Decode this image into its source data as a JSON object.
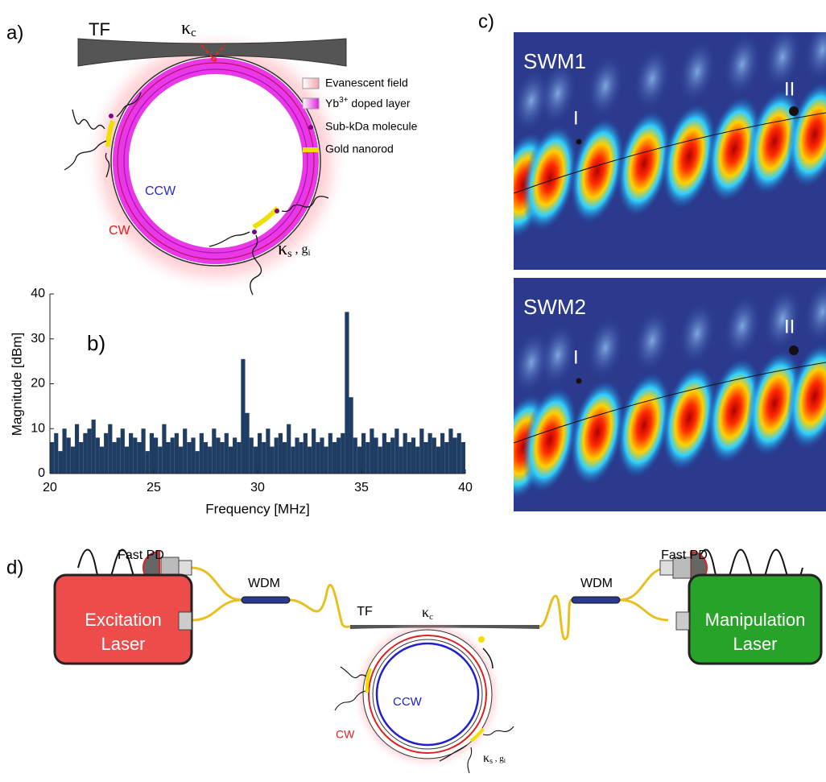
{
  "panel_a": {
    "label": "a)",
    "fiber": "TF",
    "coupling": {
      "symbol": "κ",
      "subscript": "c"
    },
    "legend": [
      "Evanescent field",
      {
        "base": "Yb",
        "sup": "3+",
        "rest": " doped layer"
      },
      "Sub-kDa molecule",
      "Gold nanorod"
    ],
    "ccw": "CCW",
    "cw": "CW",
    "scattering": {
      "symbol": "κ",
      "subscript": "s",
      "sep": " , ",
      "g": "g",
      "g_subscript": "i"
    }
  },
  "chart_data": {
    "type": "bar",
    "panel_label": "b)",
    "xlabel": "Frequency [MHz]",
    "ylabel": "Magnitude [dBm]",
    "color": "#1f3c63",
    "xlim": [
      20,
      40
    ],
    "xticks": [
      20,
      25,
      30,
      35,
      40
    ],
    "ylim": [
      0,
      40
    ],
    "yticks": [
      0,
      10,
      20,
      30,
      40
    ],
    "x": [
      20.1,
      20.3,
      20.5,
      20.7,
      20.9,
      21.1,
      21.3,
      21.5,
      21.7,
      21.9,
      22.1,
      22.3,
      22.5,
      22.7,
      22.9,
      23.1,
      23.3,
      23.5,
      23.7,
      23.9,
      24.1,
      24.3,
      24.5,
      24.7,
      24.9,
      25.1,
      25.3,
      25.5,
      25.7,
      25.9,
      26.1,
      26.3,
      26.5,
      26.7,
      26.9,
      27.1,
      27.3,
      27.5,
      27.7,
      27.9,
      28.1,
      28.3,
      28.5,
      28.7,
      28.9,
      29.1,
      29.3,
      29.5,
      29.7,
      29.9,
      30.1,
      30.3,
      30.5,
      30.7,
      30.9,
      31.1,
      31.3,
      31.5,
      31.7,
      31.9,
      32.1,
      32.3,
      32.5,
      32.7,
      32.9,
      33.1,
      33.3,
      33.5,
      33.7,
      33.9,
      34.1,
      34.3,
      34.5,
      34.7,
      34.9,
      35.1,
      35.3,
      35.5,
      35.7,
      35.9,
      36.1,
      36.3,
      36.5,
      36.7,
      36.9,
      37.1,
      37.3,
      37.5,
      37.7,
      37.9,
      38.1,
      38.3,
      38.5,
      38.7,
      38.9,
      39.1,
      39.3,
      39.5,
      39.7,
      39.9
    ],
    "values": [
      7,
      9,
      5,
      10,
      8,
      6,
      11,
      7,
      9,
      10,
      12,
      8,
      6,
      9,
      11,
      7,
      8,
      10,
      6,
      9,
      8,
      7,
      10,
      5,
      9,
      8,
      6,
      11,
      7,
      8,
      9,
      6,
      10,
      7,
      8,
      5,
      9,
      7,
      6,
      10,
      8,
      7,
      9,
      6,
      8,
      7,
      25.5,
      13.5,
      8,
      6,
      9,
      7,
      10,
      6,
      8,
      9,
      7,
      11,
      6,
      8,
      7,
      9,
      6,
      10,
      7,
      8,
      6,
      9,
      7,
      8,
      9,
      36,
      17,
      8,
      6,
      9,
      7,
      10,
      8,
      6,
      9,
      7,
      8,
      10,
      6,
      9,
      7,
      8,
      6,
      10,
      7,
      9,
      8,
      6,
      9,
      7,
      10,
      8,
      9,
      7
    ]
  },
  "panel_c": {
    "label": "c)",
    "maps": [
      {
        "title": "SWM1",
        "points": [
          "I",
          "II"
        ]
      },
      {
        "title": "SWM2",
        "points": [
          "I",
          "II"
        ]
      }
    ]
  },
  "panel_d": {
    "label": "d)",
    "detector_left": "Fast PD",
    "detector_right": "Fast PD",
    "wdm_left": "WDM",
    "wdm_right": "WDM",
    "laser_left": [
      "Excitation",
      "Laser"
    ],
    "laser_right": [
      "Manipulation",
      "Laser"
    ],
    "fiber": "TF",
    "coupling": {
      "symbol": "κ",
      "subscript": "c"
    },
    "ccw": "CCW",
    "cw": "CW",
    "scattering": {
      "symbol": "κ",
      "subscript": "s",
      "sep": " , ",
      "g": "g",
      "g_subscript": "i"
    }
  }
}
